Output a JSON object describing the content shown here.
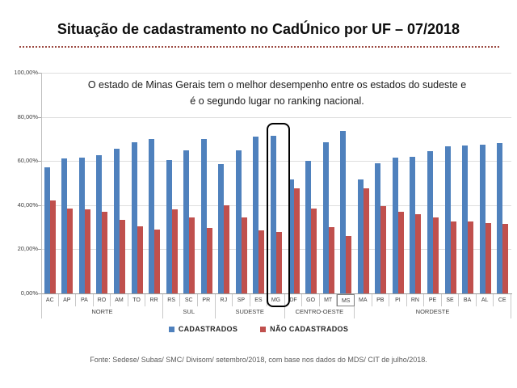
{
  "slide": {
    "title": "Situação de cadastramento no CadÚnico por UF – 07/2018",
    "source": "Fonte: Sedese/ Subas/ SMC/ Divisom/ setembro/2018, com base nos dados  do MDS/ CIT de julho/2018."
  },
  "annotation": {
    "line1": "O estado de Minas Gerais tem o melhor desempenho entre os estados do sudeste e",
    "line2": "é o segundo lugar no ranking nacional."
  },
  "colors": {
    "cadastrados_blue": "#4f81bd",
    "nao_cadastrados_red": "#c0504d",
    "divider_red": "#9c4a42"
  },
  "chart_data": {
    "type": "bar",
    "title": "Situação de cadastramento no CadÚnico por UF – 07/2018",
    "categories": [
      "AC",
      "AP",
      "PA",
      "RO",
      "AM",
      "TO",
      "RR",
      "RS",
      "SC",
      "PR",
      "RJ",
      "SP",
      "ES",
      "MG",
      "DF",
      "GO",
      "MT",
      "MS",
      "MA",
      "PB",
      "PI",
      "RN",
      "PE",
      "SE",
      "BA",
      "AL",
      "CE"
    ],
    "groups": [
      {
        "label": "NORTE",
        "count": 7
      },
      {
        "label": "SUL",
        "count": 3
      },
      {
        "label": "SUDESTE",
        "count": 4
      },
      {
        "label": "CENTRO-OESTE",
        "count": 4
      },
      {
        "label": "NORDESTE",
        "count": 9
      }
    ],
    "series": [
      {
        "name": "CADASTRADOS",
        "color": "#4f81bd",
        "values": [
          57,
          61,
          61.5,
          62.5,
          65.5,
          68.5,
          70,
          60.5,
          65,
          70,
          58.5,
          65,
          71,
          71.5,
          51.5,
          60,
          68.5,
          73.5,
          51.5,
          59,
          61.5,
          62,
          64.5,
          66.5,
          67,
          67.5,
          68
        ]
      },
      {
        "name": "NÃO CADASTRADOS",
        "color": "#c0504d",
        "values": [
          42,
          38.5,
          38,
          37,
          33.5,
          30.5,
          29,
          38,
          34.5,
          29.5,
          40,
          34.5,
          28.5,
          28,
          47.5,
          38.5,
          30,
          26,
          47.5,
          39.5,
          37,
          36,
          34.5,
          32.5,
          32.5,
          32,
          31.5
        ]
      }
    ],
    "yticks": [
      {
        "label": "100,00%",
        "value": 100
      },
      {
        "label": "80,00%",
        "value": 80
      },
      {
        "label": "60,00%",
        "value": 60
      },
      {
        "label": "40,00%",
        "value": 40
      },
      {
        "label": "20,00%",
        "value": 20
      },
      {
        "label": "0,00%",
        "value": 0
      }
    ],
    "ylim": [
      0,
      100
    ],
    "grid": true,
    "legend_position": "bottom",
    "highlight_state": "MG",
    "boxed_axis_label": "MS"
  }
}
